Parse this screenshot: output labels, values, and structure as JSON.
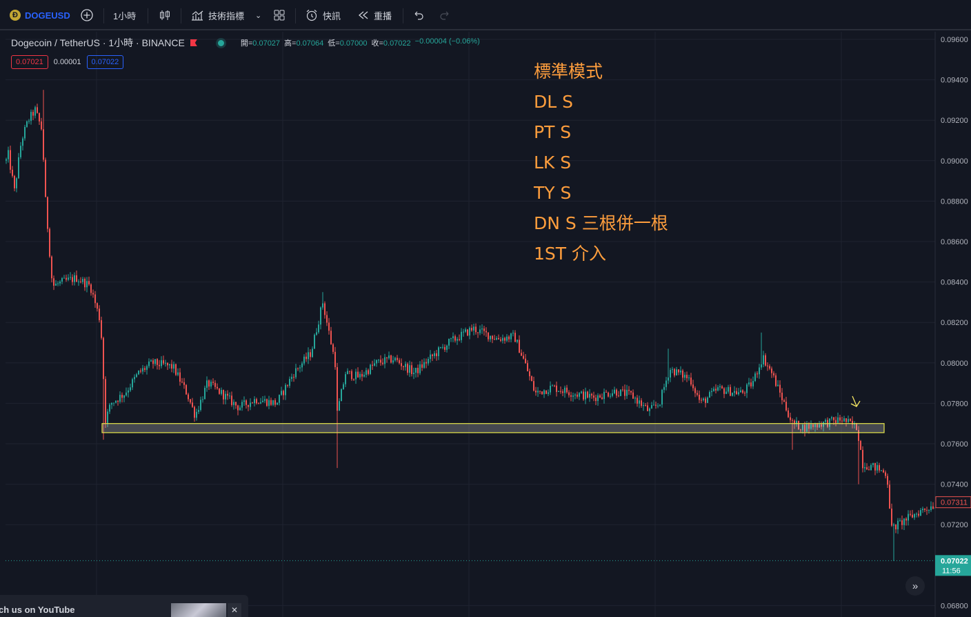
{
  "toolbar": {
    "symbol": "DOGEUSD",
    "interval": "1小時",
    "indicators_label": "技術指標",
    "alert_label": "快訊",
    "replay_label": "重播"
  },
  "legend": {
    "title": "Dogecoin / TetherUS · 1小時 · BINANCE",
    "ohlc": [
      {
        "label": "開=",
        "value": "0.07027"
      },
      {
        "label": "高=",
        "value": "0.07064"
      },
      {
        "label": "低=",
        "value": "0.07000"
      },
      {
        "label": "收=",
        "value": "0.07022"
      }
    ],
    "change": "−0.00004 (−0.06%)"
  },
  "quote": {
    "bid": "0.07021",
    "spread": "0.00001",
    "ask": "0.07022"
  },
  "notes": [
    "標準模式",
    "DL S",
    "PT S",
    "LK S",
    "TY S",
    "DN S 三根併一根",
    "1ST 介入"
  ],
  "video_banner": {
    "text": "ch us on YouTube"
  },
  "colors": {
    "up": "#26a69a",
    "down": "#ef5350",
    "background": "#131722",
    "zone_border": "#e6e64a",
    "note_text": "#ff9e3d"
  },
  "chart_data": {
    "type": "candlestick",
    "symbol": "DOGEUSDT",
    "interval": "1h",
    "ylim": [
      0.068,
      0.0965
    ],
    "y_ticks": [
      "0.09600",
      "0.09400",
      "0.09200",
      "0.09000",
      "0.08800",
      "0.08600",
      "0.08400",
      "0.08200",
      "0.08000",
      "0.07800",
      "0.07600",
      "0.07400",
      "0.07200",
      "0.06800"
    ],
    "price_path": [
      {
        "t": 0,
        "p": 0.088
      },
      {
        "t": 10,
        "p": 0.0905
      },
      {
        "t": 20,
        "p": 0.0885
      },
      {
        "t": 30,
        "p": 0.091
      },
      {
        "t": 40,
        "p": 0.092
      },
      {
        "t": 50,
        "p": 0.0925
      },
      {
        "t": 60,
        "p": 0.0915
      },
      {
        "t": 65,
        "p": 0.088
      },
      {
        "t": 75,
        "p": 0.0838
      },
      {
        "t": 90,
        "p": 0.084
      },
      {
        "t": 110,
        "p": 0.0842
      },
      {
        "t": 130,
        "p": 0.0838
      },
      {
        "t": 145,
        "p": 0.082
      },
      {
        "t": 152,
        "p": 0.0772
      },
      {
        "t": 160,
        "p": 0.078
      },
      {
        "t": 180,
        "p": 0.0785
      },
      {
        "t": 200,
        "p": 0.0795
      },
      {
        "t": 220,
        "p": 0.08
      },
      {
        "t": 250,
        "p": 0.0798
      },
      {
        "t": 270,
        "p": 0.0785
      },
      {
        "t": 282,
        "p": 0.0774
      },
      {
        "t": 300,
        "p": 0.079
      },
      {
        "t": 320,
        "p": 0.0785
      },
      {
        "t": 345,
        "p": 0.0778
      },
      {
        "t": 370,
        "p": 0.0782
      },
      {
        "t": 400,
        "p": 0.078
      },
      {
        "t": 425,
        "p": 0.0795
      },
      {
        "t": 450,
        "p": 0.0805
      },
      {
        "t": 467,
        "p": 0.083
      },
      {
        "t": 485,
        "p": 0.08
      },
      {
        "t": 488,
        "p": 0.0775
      },
      {
        "t": 500,
        "p": 0.0795
      },
      {
        "t": 520,
        "p": 0.0793
      },
      {
        "t": 545,
        "p": 0.08
      },
      {
        "t": 570,
        "p": 0.0802
      },
      {
        "t": 600,
        "p": 0.0795
      },
      {
        "t": 625,
        "p": 0.0803
      },
      {
        "t": 650,
        "p": 0.081
      },
      {
        "t": 685,
        "p": 0.0817
      },
      {
        "t": 720,
        "p": 0.0812
      },
      {
        "t": 745,
        "p": 0.0813
      },
      {
        "t": 760,
        "p": 0.08
      },
      {
        "t": 775,
        "p": 0.0785
      },
      {
        "t": 800,
        "p": 0.0788
      },
      {
        "t": 830,
        "p": 0.0785
      },
      {
        "t": 860,
        "p": 0.0783
      },
      {
        "t": 890,
        "p": 0.0786
      },
      {
        "t": 915,
        "p": 0.0784
      },
      {
        "t": 940,
        "p": 0.0776
      },
      {
        "t": 955,
        "p": 0.078
      },
      {
        "t": 970,
        "p": 0.0797
      },
      {
        "t": 1000,
        "p": 0.0792
      },
      {
        "t": 1015,
        "p": 0.078
      },
      {
        "t": 1040,
        "p": 0.0787
      },
      {
        "t": 1075,
        "p": 0.0785
      },
      {
        "t": 1090,
        "p": 0.079
      },
      {
        "t": 1105,
        "p": 0.0803
      },
      {
        "t": 1118,
        "p": 0.0795
      },
      {
        "t": 1130,
        "p": 0.0785
      },
      {
        "t": 1148,
        "p": 0.077
      },
      {
        "t": 1165,
        "p": 0.0768
      },
      {
        "t": 1190,
        "p": 0.077
      },
      {
        "t": 1220,
        "p": 0.0772
      },
      {
        "t": 1242,
        "p": 0.0768
      },
      {
        "t": 1250,
        "p": 0.075
      },
      {
        "t": 1270,
        "p": 0.0748
      },
      {
        "t": 1285,
        "p": 0.0745
      },
      {
        "t": 1292,
        "p": 0.0718
      },
      {
        "t": 1310,
        "p": 0.0722
      },
      {
        "t": 1335,
        "p": 0.0727
      },
      {
        "t": 1355,
        "p": 0.073
      }
    ],
    "spikes": [
      {
        "t": 63,
        "p": 0.0935
      },
      {
        "t": 148,
        "p": 0.0762
      },
      {
        "t": 467,
        "p": 0.0835
      },
      {
        "t": 488,
        "p": 0.0748
      },
      {
        "t": 967,
        "p": 0.0807
      },
      {
        "t": 1104,
        "p": 0.0815
      },
      {
        "t": 1148,
        "p": 0.0757
      },
      {
        "t": 1245,
        "p": 0.074
      },
      {
        "t": 1294,
        "p": 0.0702
      }
    ],
    "support_zone": {
      "low": 0.07655,
      "high": 0.077
    },
    "price_labels": [
      {
        "value": 0.07311,
        "text": "0.07311",
        "style": "outline"
      },
      {
        "value": 0.07022,
        "text": "0.07022",
        "sub": "11:56",
        "style": "current"
      }
    ]
  }
}
